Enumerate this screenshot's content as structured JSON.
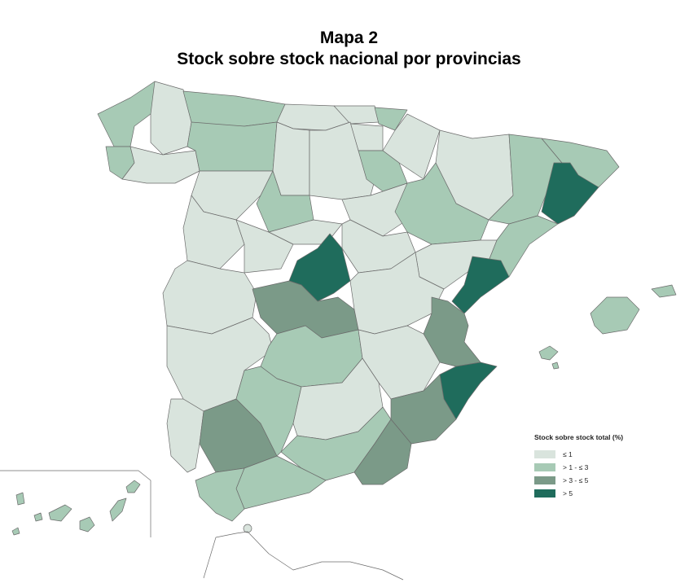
{
  "header": {
    "title": "Mapa 2",
    "subtitle": "Stock sobre stock nacional por provincias"
  },
  "legend": {
    "title": "Stock sobre stock total (%)",
    "items": [
      {
        "label": "≤ 1",
        "color": "#d9e4dd"
      },
      {
        "label": "> 1 - ≤ 3",
        "color": "#a7cab5"
      },
      {
        "label": "> 3 - ≤ 5",
        "color": "#7b9a88"
      },
      {
        "label": "> 5",
        "color": "#1f6c5c"
      }
    ]
  },
  "map_data": {
    "type": "choropleth",
    "region": "España - provincias",
    "classes": [
      "≤ 1",
      "> 1 - ≤ 3",
      "> 3 - ≤ 5",
      "> 5"
    ],
    "colors": {
      "c1": "#d9e4dd",
      "c2": "#a7cab5",
      "c3": "#7b9a88",
      "c4": "#1f6c5c"
    }
  }
}
